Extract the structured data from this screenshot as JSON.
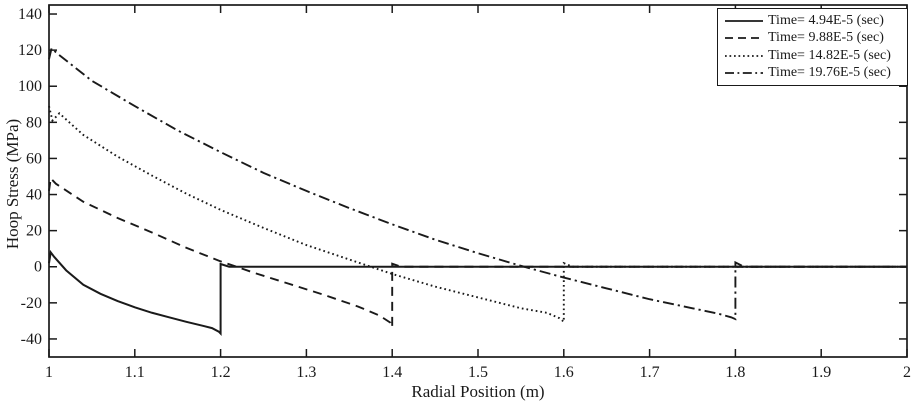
{
  "chart_data": {
    "type": "line",
    "title": "",
    "xlabel": "Radial Position (m)",
    "ylabel": "Hoop Stress (MPa)",
    "xlim": [
      1,
      2
    ],
    "ylim": [
      -50,
      145
    ],
    "xtick_values": [
      1,
      1.1,
      1.2,
      1.3,
      1.4,
      1.5,
      1.6,
      1.7,
      1.8,
      1.9,
      2
    ],
    "xtick_labels": [
      "1",
      "1.1",
      "1.2",
      "1.3",
      "1.4",
      "1.5",
      "1.6",
      "1.7",
      "1.8",
      "1.9",
      "2"
    ],
    "ytick_values": [
      -40,
      -20,
      0,
      20,
      40,
      60,
      80,
      100,
      120,
      140
    ],
    "ytick_labels": [
      "-40",
      "-20",
      "0",
      "20",
      "40",
      "60",
      "80",
      "100",
      "120",
      "140"
    ],
    "grid": false,
    "legend_position": "top-right",
    "line_color": "#1a1a1a",
    "background_color": "#ffffff",
    "series": [
      {
        "name": "Time= 4.94E-5 (sec)",
        "style": "solid",
        "wavefront_r": 1.2,
        "points": [
          [
            1.0,
            2
          ],
          [
            1.002,
            8
          ],
          [
            1.006,
            5.5
          ],
          [
            1.02,
            -2
          ],
          [
            1.04,
            -10
          ],
          [
            1.06,
            -15
          ],
          [
            1.08,
            -19
          ],
          [
            1.1,
            -22.5
          ],
          [
            1.12,
            -25.5
          ],
          [
            1.14,
            -28
          ],
          [
            1.16,
            -30.5
          ],
          [
            1.18,
            -32.8
          ],
          [
            1.19,
            -34
          ],
          [
            1.198,
            -36
          ],
          [
            1.2,
            -37
          ],
          [
            1.2,
            1.5
          ],
          [
            1.21,
            0
          ],
          [
            2.0,
            0
          ]
        ]
      },
      {
        "name": "Time= 9.88E-5 (sec)",
        "style": "dashed",
        "wavefront_r": 1.4,
        "points": [
          [
            1.0,
            42
          ],
          [
            1.002,
            49
          ],
          [
            1.008,
            46
          ],
          [
            1.04,
            36
          ],
          [
            1.08,
            27
          ],
          [
            1.12,
            19
          ],
          [
            1.16,
            10.5
          ],
          [
            1.2,
            3
          ],
          [
            1.24,
            -3.5
          ],
          [
            1.28,
            -9.5
          ],
          [
            1.32,
            -15.5
          ],
          [
            1.36,
            -22
          ],
          [
            1.385,
            -27
          ],
          [
            1.398,
            -31
          ],
          [
            1.4,
            -33.5
          ],
          [
            1.4,
            1.7
          ],
          [
            1.41,
            0
          ],
          [
            2.0,
            0
          ]
        ]
      },
      {
        "name": "Time= 14.82E-5 (sec)",
        "style": "dotted",
        "wavefront_r": 1.6,
        "points": [
          [
            1.0,
            89
          ],
          [
            1.004,
            81
          ],
          [
            1.012,
            85
          ],
          [
            1.04,
            73
          ],
          [
            1.08,
            61
          ],
          [
            1.12,
            50.5
          ],
          [
            1.16,
            40.5
          ],
          [
            1.2,
            31.5
          ],
          [
            1.25,
            21.5
          ],
          [
            1.3,
            12
          ],
          [
            1.35,
            4
          ],
          [
            1.4,
            -4
          ],
          [
            1.45,
            -11
          ],
          [
            1.5,
            -17
          ],
          [
            1.55,
            -23
          ],
          [
            1.58,
            -25.5
          ],
          [
            1.595,
            -28.5
          ],
          [
            1.6,
            -30.5
          ],
          [
            1.6,
            2
          ],
          [
            1.61,
            0
          ],
          [
            2.0,
            0
          ]
        ]
      },
      {
        "name": "Time= 19.76E-5 (sec)",
        "style": "dashdot",
        "wavefront_r": 1.8,
        "points": [
          [
            1.0,
            115
          ],
          [
            1.003,
            121
          ],
          [
            1.01,
            118
          ],
          [
            1.05,
            103
          ],
          [
            1.1,
            89
          ],
          [
            1.15,
            75.5
          ],
          [
            1.2,
            63.5
          ],
          [
            1.25,
            52
          ],
          [
            1.3,
            42
          ],
          [
            1.35,
            32.5
          ],
          [
            1.4,
            23.5
          ],
          [
            1.45,
            15
          ],
          [
            1.5,
            7.5
          ],
          [
            1.55,
            0.5
          ],
          [
            1.6,
            -6
          ],
          [
            1.65,
            -12
          ],
          [
            1.7,
            -18
          ],
          [
            1.75,
            -23
          ],
          [
            1.78,
            -26
          ],
          [
            1.795,
            -28
          ],
          [
            1.8,
            -29
          ],
          [
            1.8,
            2.4
          ],
          [
            1.81,
            0
          ],
          [
            2.0,
            0
          ]
        ]
      }
    ]
  }
}
